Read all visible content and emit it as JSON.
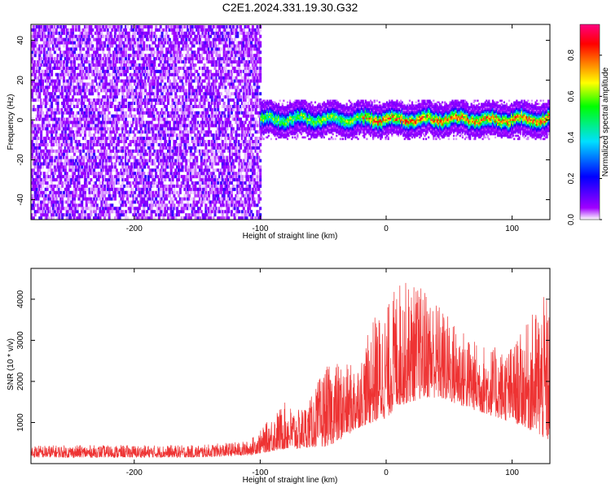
{
  "title": "C2E1.2024.331.19.30.G32",
  "chart_data": [
    {
      "type": "heatmap",
      "xlabel": "Height of straight line (km)",
      "ylabel": "Frequency (Hz)",
      "xlim": [
        -282,
        130
      ],
      "ylim": [
        -50,
        48
      ],
      "xticks": [
        -200,
        -100,
        0,
        100
      ],
      "xtick_labels": [
        "-200",
        "-100",
        "0",
        "100"
      ],
      "yticks": [
        -40,
        -20,
        0,
        20,
        40
      ],
      "ytick_labels": [
        "-40",
        "-20",
        "0",
        "20",
        "40"
      ],
      "colorbar": {
        "label": "Normalized spectral amplitude",
        "range": [
          0,
          0.95
        ],
        "ticks": [
          0,
          0.2,
          0.4,
          0.6,
          0.8
        ],
        "tick_labels": [
          "0.0",
          "0.2",
          "0.4",
          "0.6",
          "0.8"
        ],
        "colormap": [
          "#ffffff",
          "#a000ff",
          "#0000ff",
          "#00e0ff",
          "#00ff00",
          "#ffff00",
          "#ff8000",
          "#ff0000",
          "#ff0080"
        ]
      },
      "regions": [
        {
          "x_range": [
            -282,
            -100
          ],
          "freq_range": [
            -50,
            48
          ],
          "amplitude": [
            0.0,
            0.1
          ]
        },
        {
          "x_range": [
            -100,
            130
          ],
          "freq_center": 1,
          "freq_halfwidth": 6,
          "amplitude_peak": 0.9
        }
      ],
      "grid": false
    },
    {
      "type": "line",
      "xlabel": "Height of straight line (km)",
      "ylabel": "SNR (10 * v/v)",
      "xlim": [
        -282,
        130
      ],
      "ylim": [
        0,
        4750
      ],
      "xticks": [
        -200,
        -100,
        0,
        100
      ],
      "xtick_labels": [
        "-200",
        "-100",
        "0",
        "100"
      ],
      "yticks": [
        1000,
        2000,
        3000,
        4000
      ],
      "ytick_labels": [
        "1000",
        "2000",
        "3000",
        "4000"
      ],
      "series": [
        {
          "color": "#ee3333",
          "envelope_x": [
            -282,
            -250,
            -200,
            -150,
            -110,
            -100,
            -90,
            -80,
            -70,
            -60,
            -50,
            -40,
            -30,
            -20,
            -10,
            0,
            10,
            20,
            30,
            40,
            50,
            60,
            70,
            80,
            90,
            100,
            110,
            120,
            130
          ],
          "envelope_low": [
            150,
            150,
            150,
            150,
            200,
            250,
            300,
            350,
            350,
            400,
            400,
            500,
            700,
            900,
            1000,
            1100,
            1400,
            1500,
            1600,
            1600,
            1500,
            1400,
            1300,
            1200,
            1100,
            1000,
            900,
            700,
            500
          ],
          "envelope_high": [
            450,
            450,
            450,
            450,
            550,
            800,
            1200,
            1500,
            1300,
            1600,
            2300,
            2500,
            2400,
            2600,
            3600,
            3800,
            4500,
            4400,
            4300,
            4000,
            3600,
            3300,
            3000,
            2900,
            2800,
            2900,
            3300,
            3900,
            4200
          ]
        }
      ],
      "grid": false
    }
  ]
}
